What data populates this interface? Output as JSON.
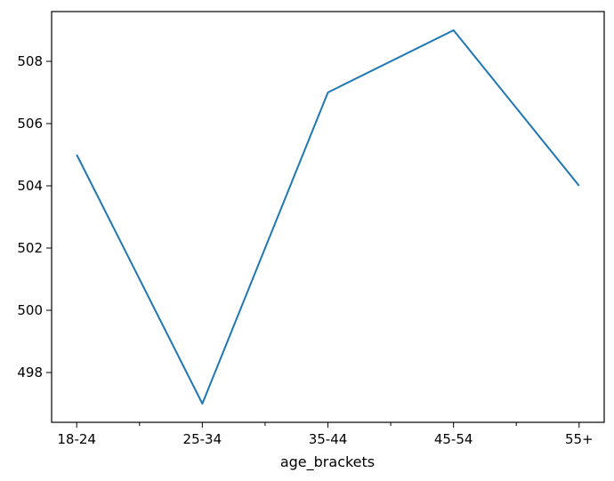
{
  "chart_data": {
    "type": "line",
    "categories": [
      "18-24",
      "25-34",
      "35-44",
      "45-54",
      "55+"
    ],
    "series": [
      {
        "values": [
          505,
          497,
          507,
          509,
          504
        ],
        "color": "#1f77b4"
      }
    ],
    "x_minor_ticks": true,
    "xlabel": "age_brackets",
    "ylabel": "",
    "title": "",
    "y_ticks": [
      498,
      500,
      502,
      504,
      506,
      508
    ],
    "ylim": [
      496.4,
      509.6
    ],
    "grid": false,
    "legend": "none"
  }
}
